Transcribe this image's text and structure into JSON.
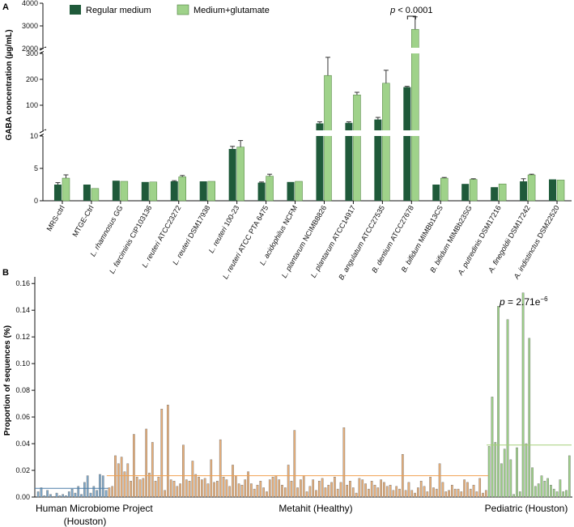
{
  "chart_data": [
    {
      "panel": "A",
      "type": "bar",
      "ylabel": "GABA concentration (µg/mL)",
      "broken_axis": true,
      "ylim_segments": [
        [
          0,
          10
        ],
        [
          0,
          300
        ],
        [
          2000,
          4000
        ]
      ],
      "ticks_low": [
        0,
        5,
        10
      ],
      "ticks_mid": [
        100,
        200,
        300
      ],
      "ticks_high": [
        2000,
        3000,
        4000
      ],
      "legend": [
        "Regular medium",
        "Medium+glutamate"
      ],
      "series_colors": [
        "#1f5a3a",
        "#9fd28a"
      ],
      "categories": [
        {
          "prefix": "",
          "species": "",
          "strain": "MRS-ctrl"
        },
        {
          "prefix": "",
          "species": "",
          "strain": "MTGE-Ctrl"
        },
        {
          "prefix": "",
          "species": "L. rhamnosus",
          "strain": "GG"
        },
        {
          "prefix": "",
          "species": "L. farciminis",
          "strain": "CIP103136"
        },
        {
          "prefix": "",
          "species": "L. reuteri",
          "strain": "ATCC23272"
        },
        {
          "prefix": "",
          "species": "L. reuteri",
          "strain": "DSM17938"
        },
        {
          "prefix": "",
          "species": "L. reuteri",
          "strain": "100-23"
        },
        {
          "prefix": "",
          "species": "L. reuteri",
          "strain": "ATCC PTA 6475"
        },
        {
          "prefix": "",
          "species": "L. acidophilus",
          "strain": "NCFM"
        },
        {
          "prefix": "",
          "species": "L. plantarum",
          "strain": "NCIMB8826"
        },
        {
          "prefix": "",
          "species": "L. plantarum",
          "strain": "ATCC14917"
        },
        {
          "prefix": "",
          "species": "B. angulatum",
          "strain": "ATCC27535"
        },
        {
          "prefix": "",
          "species": "B. dentium",
          "strain": "ATCC27678"
        },
        {
          "prefix": "",
          "species": "B. bifidum",
          "strain": "MIMBb13CS"
        },
        {
          "prefix": "",
          "species": "B. bifidum",
          "strain": "MIMBb23SG"
        },
        {
          "prefix": "",
          "species": "A. putredinis",
          "strain": "DSM17216"
        },
        {
          "prefix": "",
          "species": "A. finegoldii",
          "strain": "DSM17242"
        },
        {
          "prefix": "",
          "species": "A. indistinctus",
          "strain": "DSM22520"
        }
      ],
      "series": [
        {
          "name": "Regular medium",
          "values": [
            2.5,
            2.5,
            3.1,
            2.9,
            3.0,
            3.0,
            8.0,
            2.8,
            2.9,
            30,
            32,
            45,
            170,
            2.5,
            2.6,
            2.1,
            3.0,
            3.3
          ],
          "errors": [
            0.3,
            0,
            0,
            0,
            0.1,
            0,
            0.4,
            0.1,
            0,
            6,
            4,
            8,
            3,
            0,
            0,
            0,
            0.4,
            0
          ]
        },
        {
          "name": "Medium+glutamate",
          "values": [
            3.5,
            1.9,
            3.0,
            2.9,
            3.7,
            3.0,
            8.3,
            3.8,
            3.0,
            215,
            140,
            185,
            2850,
            3.5,
            3.3,
            2.6,
            4.0,
            3.2
          ],
          "errors": [
            0.5,
            0,
            0,
            0,
            0.2,
            0,
            1.0,
            0.3,
            0,
            70,
            10,
            50,
            550,
            0.1,
            0.1,
            0,
            0.1,
            0
          ]
        }
      ],
      "annotation": {
        "text_prefix": "p",
        "text": " < 0.0001",
        "category_index": 12
      }
    },
    {
      "panel": "B",
      "type": "bar",
      "ylabel": "Proportion of sequences (%)",
      "ylim": [
        0,
        0.165
      ],
      "yticks": [
        "0.00",
        "0.02",
        "0.04",
        "0.06",
        "0.08",
        "0.10",
        "0.12",
        "0.14",
        "0.16"
      ],
      "groups": [
        {
          "name": "Human Microbiome Project",
          "subtitle": "(Houston)",
          "color": "#7fa8c9",
          "mean": 0.0065,
          "values": [
            0.004,
            0.007,
            0.001,
            0.005,
            0.002,
            0.0005,
            0.003,
            0.001,
            0.002,
            0.001,
            0.004,
            0.006,
            0.003,
            0.008,
            0.002,
            0.011,
            0.016,
            0.003,
            0.008,
            0.005,
            0.017,
            0.016,
            0.005
          ]
        },
        {
          "name": "Metahit (Healthy)",
          "subtitle": "",
          "color": "#e9b07a",
          "mean": 0.016,
          "values": [
            0.007,
            0.008,
            0.031,
            0.025,
            0.03,
            0.019,
            0.025,
            0.012,
            0.047,
            0.015,
            0.013,
            0.014,
            0.051,
            0.018,
            0.041,
            0.012,
            0.015,
            0.066,
            0.005,
            0.069,
            0.013,
            0.012,
            0.008,
            0.01,
            0.039,
            0.013,
            0.012,
            0.027,
            0.017,
            0.015,
            0.013,
            0.014,
            0.01,
            0.028,
            0.011,
            0.012,
            0.043,
            0.015,
            0.013,
            0.008,
            0.024,
            0.016,
            0.01,
            0.009,
            0.013,
            0.019,
            0.01,
            0.006,
            0.009,
            0.012,
            0.007,
            0.004,
            0.013,
            0.015,
            0.016,
            0.013,
            0.009,
            0.007,
            0.024,
            0.012,
            0.05,
            0.007,
            0.013,
            0.016,
            0.004,
            0.008,
            0.013,
            0.005,
            0.012,
            0.014,
            0.007,
            0.009,
            0.011,
            0.015,
            0.006,
            0.011,
            0.052,
            0.009,
            0.012,
            0.007,
            0.003,
            0.014,
            0.013,
            0.01,
            0.006,
            0.012,
            0.009,
            0.007,
            0.013,
            0.011,
            0.008,
            0.009,
            0.005,
            0.008,
            0.006,
            0.032,
            0.005,
            0.011,
            0.005,
            0.003,
            0.007,
            0.012,
            0.008,
            0.004,
            0.015,
            0.007,
            0.006,
            0.025,
            0.011,
            0.004,
            0.005,
            0.009,
            0.006,
            0.006,
            0.004,
            0.013,
            0.011,
            0.006,
            0.009,
            0.004,
            0.014,
            0.003,
            0.005
          ]
        },
        {
          "name": "Pediatric (Houston)",
          "subtitle": "",
          "color": "#9fd28a",
          "mean": 0.039,
          "values": [
            0.038,
            0.075,
            0.041,
            0.143,
            0.025,
            0.036,
            0.133,
            0.028,
            0.002,
            0.037,
            0.004,
            0.153,
            0.04,
            0.119,
            0.022,
            0.008,
            0.01,
            0.016,
            0.012,
            0.014,
            0.009,
            0.006,
            0.004,
            0.013,
            0.004,
            0.005,
            0.031
          ]
        }
      ],
      "annotation": {
        "text_prefix": "p",
        "text": " = 2.71e",
        "superscript": "−6"
      }
    }
  ]
}
